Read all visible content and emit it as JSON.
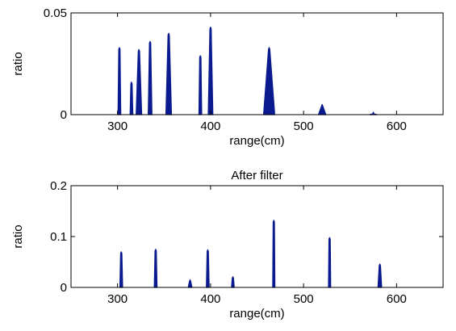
{
  "chart_data": [
    {
      "type": "bar",
      "title": "",
      "xlabel": "range(cm)",
      "ylabel": "ratio",
      "xlim": [
        250,
        650
      ],
      "ylim": [
        0,
        0.05
      ],
      "xticks": [
        300,
        400,
        500,
        600
      ],
      "yticks": [
        0,
        0.05
      ],
      "ytick_labels": [
        "0",
        "0.05"
      ],
      "grid": false,
      "color": "#0b1b8f",
      "peaks": [
        {
          "x": 302,
          "y": 0.033,
          "halfwidth": 1.5
        },
        {
          "x": 315,
          "y": 0.016,
          "halfwidth": 1.5
        },
        {
          "x": 323,
          "y": 0.032,
          "halfwidth": 3
        },
        {
          "x": 335,
          "y": 0.036,
          "halfwidth": 2
        },
        {
          "x": 355,
          "y": 0.04,
          "halfwidth": 3
        },
        {
          "x": 389,
          "y": 0.029,
          "halfwidth": 1.5
        },
        {
          "x": 400,
          "y": 0.043,
          "halfwidth": 2.5
        },
        {
          "x": 463,
          "y": 0.033,
          "halfwidth": 6
        },
        {
          "x": 520,
          "y": 0.005,
          "halfwidth": 4
        },
        {
          "x": 575,
          "y": 0.0012,
          "halfwidth": 4
        }
      ]
    },
    {
      "type": "bar",
      "title": "After filter",
      "xlabel": "range(cm)",
      "ylabel": "ratio",
      "xlim": [
        250,
        650
      ],
      "ylim": [
        0,
        0.2
      ],
      "xticks": [
        300,
        400,
        500,
        600
      ],
      "yticks": [
        0,
        0.1,
        0.2
      ],
      "ytick_labels": [
        "0",
        "0.1",
        "0.2"
      ],
      "grid": false,
      "color": "#0b1b8f",
      "peaks": [
        {
          "x": 304,
          "y": 0.07,
          "halfwidth": 1.5
        },
        {
          "x": 341,
          "y": 0.075,
          "halfwidth": 1.5
        },
        {
          "x": 378,
          "y": 0.015,
          "halfwidth": 2
        },
        {
          "x": 397,
          "y": 0.074,
          "halfwidth": 1.5
        },
        {
          "x": 424,
          "y": 0.021,
          "halfwidth": 1.5
        },
        {
          "x": 468,
          "y": 0.132,
          "halfwidth": 1.2
        },
        {
          "x": 528,
          "y": 0.098,
          "halfwidth": 1.2
        },
        {
          "x": 582,
          "y": 0.046,
          "halfwidth": 2
        }
      ]
    }
  ]
}
